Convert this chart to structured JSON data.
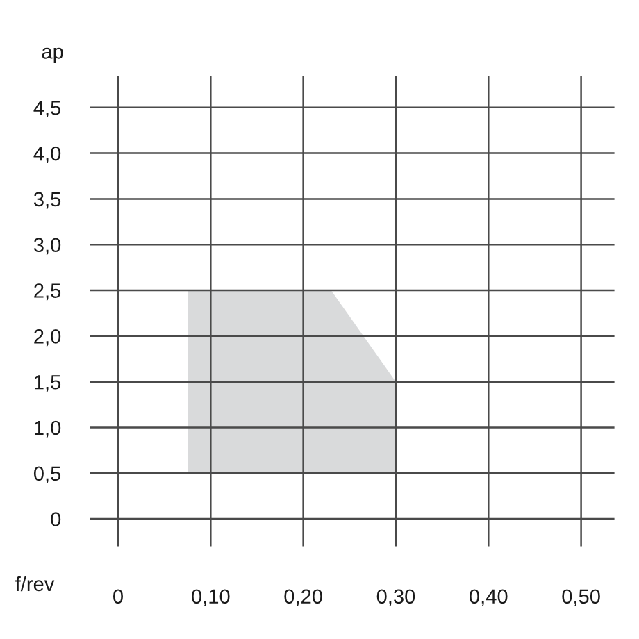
{
  "chart_data": {
    "type": "area",
    "xlabel": "f/rev",
    "ylabel": "ap",
    "series": [
      {
        "color": "#d9dadb",
        "x": [
          0.075,
          0.23,
          0.3
        ],
        "values": [
          null,
          null,
          null
        ],
        "lower": [
          0.5,
          0.5,
          0.5
        ],
        "upper": [
          2.5,
          2.5,
          1.5
        ]
      }
    ],
    "xlim": [
      -0.03,
      0.536
    ],
    "ylim": [
      -0.3,
      4.84
    ],
    "xticks": [
      0,
      {
        "value": 0.1,
        "label": "0,10"
      },
      {
        "value": 0.2,
        "label": "0,20"
      },
      {
        "value": 0.3,
        "label": "0,30"
      },
      {
        "value": 0.4,
        "label": "0,40"
      },
      {
        "value": 0.5,
        "label": "0,50"
      }
    ],
    "yticks": [
      0,
      {
        "value": 0.5,
        "label": "0,5"
      },
      {
        "value": 1,
        "label": "1,0"
      },
      {
        "value": 1.5,
        "label": "1,5"
      },
      {
        "value": 2,
        "label": "2,0"
      },
      {
        "value": 2.5,
        "label": "2,5"
      },
      {
        "value": 3,
        "label": "3,0"
      },
      {
        "value": 3.5,
        "label": "3,5"
      },
      {
        "value": 4,
        "label": "4,0"
      },
      {
        "value": 4.5,
        "label": "4,5"
      }
    ],
    "grid": true
  }
}
